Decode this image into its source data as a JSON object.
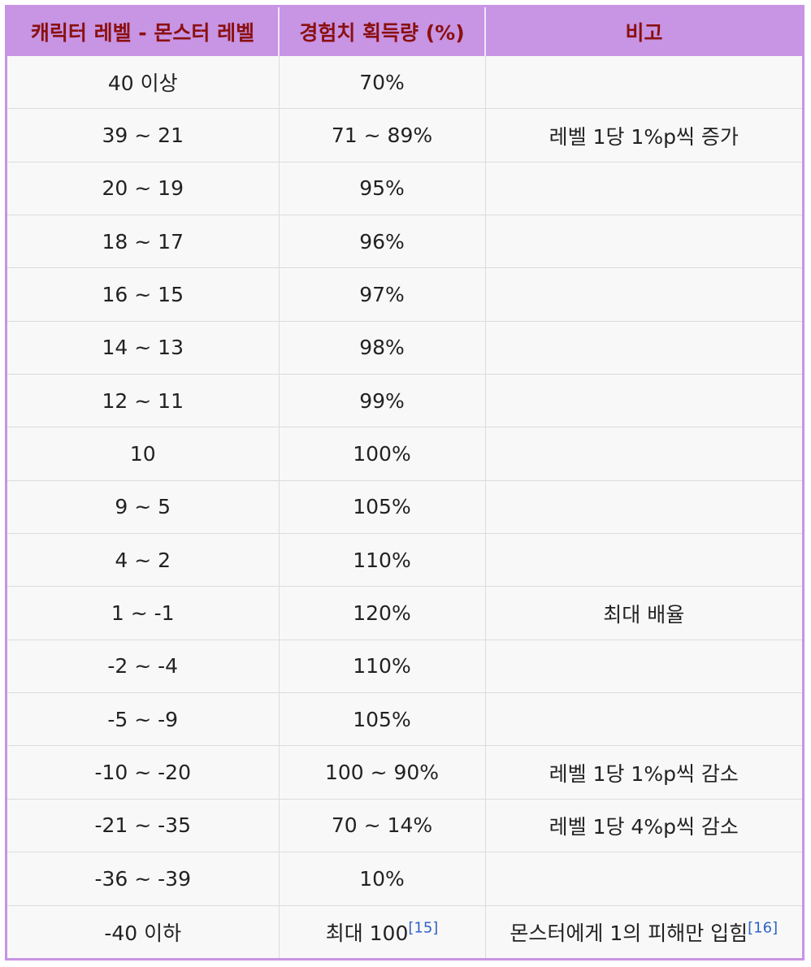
{
  "table": {
    "headers": [
      "캐릭터 레벨 - 몬스터 레벨",
      "경험치 획득량 (%)",
      "비고"
    ],
    "rows": [
      {
        "level_diff": "40 이상",
        "exp": "70%",
        "note": ""
      },
      {
        "level_diff": "39 ~ 21",
        "exp": "71 ~ 89%",
        "note": "레벨 1당 1%p씩 증가"
      },
      {
        "level_diff": "20 ~ 19",
        "exp": "95%",
        "note": ""
      },
      {
        "level_diff": "18 ~ 17",
        "exp": "96%",
        "note": ""
      },
      {
        "level_diff": "16 ~ 15",
        "exp": "97%",
        "note": ""
      },
      {
        "level_diff": "14 ~ 13",
        "exp": "98%",
        "note": ""
      },
      {
        "level_diff": "12 ~ 11",
        "exp": "99%",
        "note": ""
      },
      {
        "level_diff": "10",
        "exp": "100%",
        "note": ""
      },
      {
        "level_diff": "9 ~ 5",
        "exp": "105%",
        "note": ""
      },
      {
        "level_diff": "4 ~ 2",
        "exp": "110%",
        "note": ""
      },
      {
        "level_diff": "1 ~ -1",
        "exp": "120%",
        "note": "최대 배율"
      },
      {
        "level_diff": "-2 ~ -4",
        "exp": "110%",
        "note": ""
      },
      {
        "level_diff": "-5 ~ -9",
        "exp": "105%",
        "note": ""
      },
      {
        "level_diff": "-10 ~ -20",
        "exp": "100 ~ 90%",
        "note": "레벨 1당 1%p씩 감소"
      },
      {
        "level_diff": "-21 ~ -35",
        "exp": "70 ~ 14%",
        "note": "레벨 1당 4%p씩 감소"
      },
      {
        "level_diff": "-36 ~ -39",
        "exp": "10%",
        "note": ""
      },
      {
        "level_diff": "-40 이하",
        "exp": "최대 100",
        "exp_ref": "[15]",
        "note": "몬스터에게 1의 피해만 입힘",
        "note_ref": "[16]"
      }
    ]
  },
  "colors": {
    "header_bg": "#c894e4",
    "header_text": "#8a1010",
    "cell_bg": "#f8f8f8",
    "reference_link": "#2e63c7"
  }
}
